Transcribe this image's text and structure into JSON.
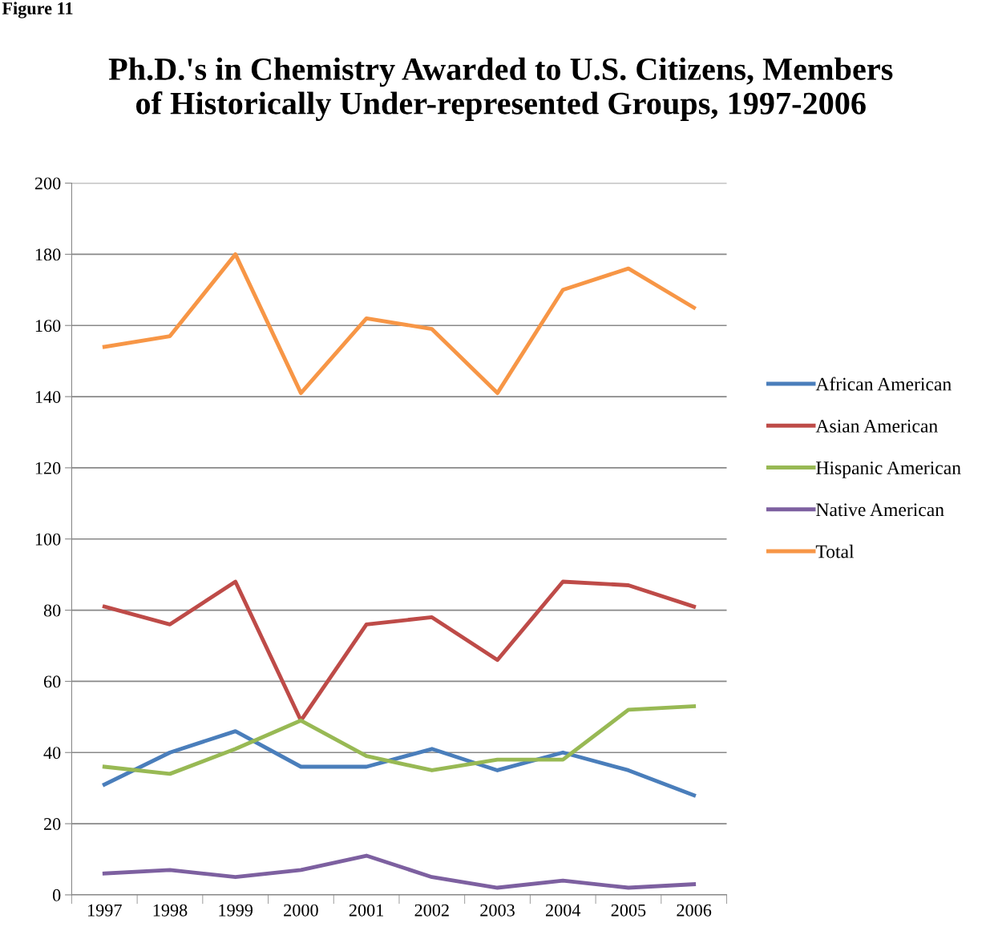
{
  "chart_data": {
    "type": "line",
    "title": "Ph.D.'s in Chemistry Awarded to U.S. Citizens, Members of Historically Under-represented Groups, 1997-2006",
    "annotations": [
      "Figure 11"
    ],
    "categories": [
      "1997",
      "1998",
      "1999",
      "2000",
      "2001",
      "2002",
      "2003",
      "2004",
      "2005",
      "2006"
    ],
    "series": [
      {
        "name": "African American",
        "color": "#4a7ebb",
        "values": [
          31,
          40,
          46,
          36,
          36,
          41,
          35,
          40,
          35,
          28
        ]
      },
      {
        "name": "Asian American",
        "color": "#be4b48",
        "values": [
          81,
          76,
          88,
          49,
          76,
          78,
          66,
          88,
          87,
          81
        ]
      },
      {
        "name": "Hispanic American",
        "color": "#98b954",
        "values": [
          36,
          34,
          41,
          49,
          39,
          35,
          38,
          38,
          52,
          53
        ]
      },
      {
        "name": "Native American",
        "color": "#7d60a0",
        "values": [
          6,
          7,
          5,
          7,
          11,
          5,
          2,
          4,
          2,
          3
        ]
      },
      {
        "name": "Total",
        "color": "#f79646",
        "values": [
          154,
          157,
          180,
          141,
          162,
          159,
          141,
          170,
          176,
          165
        ]
      }
    ],
    "ylim": [
      0,
      200
    ],
    "yticks": [
      0,
      20,
      40,
      60,
      80,
      100,
      120,
      140,
      160,
      180,
      200
    ],
    "grid": "y",
    "legend": "right",
    "marker": "none",
    "line_style": "solid"
  }
}
